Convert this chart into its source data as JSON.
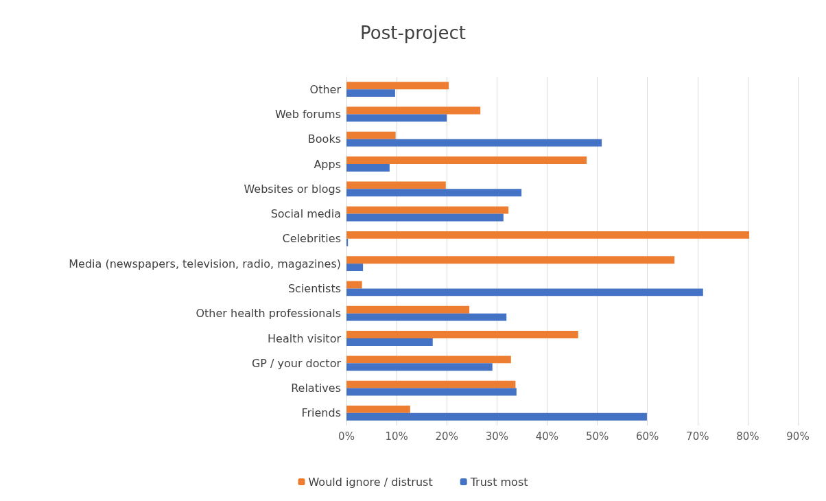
{
  "chart_data": {
    "type": "bar",
    "orientation": "horizontal",
    "title": "Post-project",
    "categories": [
      "Other",
      "Web forums",
      "Books",
      "Apps",
      "Websites or blogs",
      "Social media",
      "Celebrities",
      "Media (newspapers, television, radio, magazines)",
      "Scientists",
      "Other health professionals",
      "Health visitor",
      "GP / your doctor",
      "Relatives",
      "Friends"
    ],
    "series": [
      {
        "name": "Would ignore / distrust",
        "color": "#ed7d31",
        "values": [
          20.4,
          26.7,
          9.8,
          47.9,
          19.8,
          32.3,
          80.3,
          65.4,
          3.1,
          24.5,
          46.2,
          32.8,
          33.7,
          12.7
        ]
      },
      {
        "name": "Trust most",
        "color": "#4472c4",
        "values": [
          9.7,
          20,
          50.9,
          8.6,
          34.9,
          31.3,
          0.3,
          3.3,
          71.1,
          31.9,
          17.2,
          29.1,
          33.9,
          59.9
        ]
      }
    ],
    "xlim": [
      0,
      90
    ],
    "xticks": [
      {
        "value": 0,
        "label": "0%"
      },
      {
        "value": 10,
        "label": "10%"
      },
      {
        "value": 20,
        "label": "20%"
      },
      {
        "value": 30,
        "label": "30%"
      },
      {
        "value": 40,
        "label": "40%"
      },
      {
        "value": 50,
        "label": "50%"
      },
      {
        "value": 60,
        "label": "60%"
      },
      {
        "value": 70,
        "label": "70%"
      },
      {
        "value": 80,
        "label": "80%"
      },
      {
        "value": 90,
        "label": "90%"
      }
    ],
    "grid": "x",
    "legend": "bottom"
  }
}
